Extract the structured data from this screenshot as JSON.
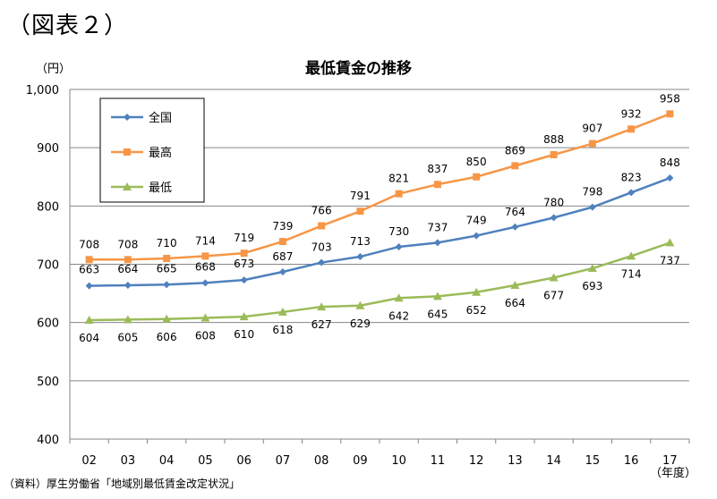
{
  "figure_label": "（図表２）",
  "source_note": "（資料）厚生労働省「地域別最低賃金改定状況」",
  "chart_data": {
    "type": "line",
    "title": "最低賃金の推移",
    "ylabel": "（円）",
    "xlabel": "（年度）",
    "ylim": [
      400,
      1000
    ],
    "yticks": [
      "400",
      "500",
      "600",
      "700",
      "800",
      "900",
      "1,000"
    ],
    "categories": [
      "02",
      "03",
      "04",
      "05",
      "06",
      "07",
      "08",
      "09",
      "10",
      "11",
      "12",
      "13",
      "14",
      "15",
      "16",
      "17"
    ],
    "grid": true,
    "legend_position": "top-left",
    "series": [
      {
        "name": "全国",
        "color": "#4f81bd",
        "marker": "diamond",
        "values": [
          663,
          664,
          665,
          668,
          673,
          687,
          703,
          713,
          730,
          737,
          749,
          764,
          780,
          798,
          823,
          848
        ]
      },
      {
        "name": "最高",
        "color": "#f79646",
        "marker": "square",
        "values": [
          708,
          708,
          710,
          714,
          719,
          739,
          766,
          791,
          821,
          837,
          850,
          869,
          888,
          907,
          932,
          958
        ]
      },
      {
        "name": "最低",
        "color": "#9bbb59",
        "marker": "triangle",
        "values": [
          604,
          605,
          606,
          608,
          610,
          618,
          627,
          629,
          642,
          645,
          652,
          664,
          677,
          693,
          714,
          737
        ]
      }
    ]
  }
}
